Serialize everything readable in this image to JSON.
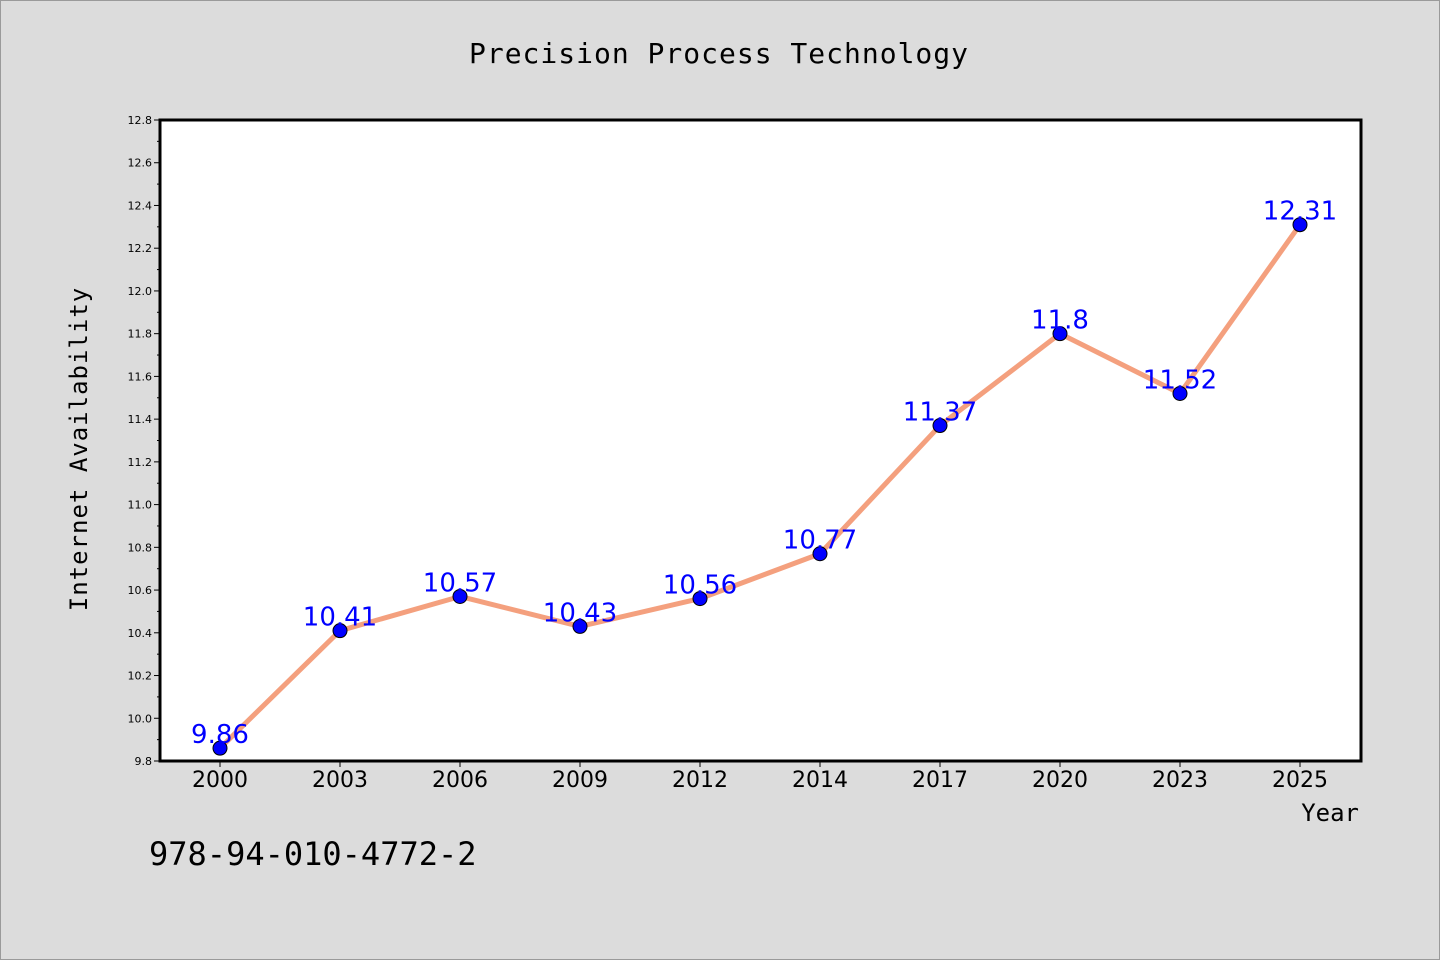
{
  "chart_data": {
    "type": "line",
    "title": "Precision Process Technology",
    "xlabel": "Year",
    "ylabel": "Internet Availability",
    "categories": [
      "2000",
      "2003",
      "2006",
      "2009",
      "2012",
      "2014",
      "2017",
      "2020",
      "2023",
      "2025"
    ],
    "series": [
      {
        "values": [
          9.86,
          10.41,
          10.57,
          10.43,
          10.56,
          10.77,
          11.37,
          11.8,
          11.52,
          12.31
        ],
        "labels": [
          "9.86",
          "10.41",
          "10.57",
          "10.43",
          "10.56",
          "10.77",
          "11.37",
          "11.8",
          "11.52",
          "12.31"
        ]
      }
    ],
    "ylim": [
      9.8,
      12.8
    ],
    "yticks": [
      "9.8",
      "10.0",
      "10.2",
      "10.4",
      "10.6",
      "10.8",
      "11.0",
      "11.2",
      "11.4",
      "11.6",
      "11.8",
      "12.0",
      "12.2",
      "12.4",
      "12.6",
      "12.8"
    ],
    "grid": false,
    "legend": "none",
    "annotation": "978-94-010-4772-2",
    "colors": {
      "background": "#dcdcdc",
      "plot_area": "#ffffff",
      "line": "#f4a07e",
      "marker": "#0000ff",
      "data_label": "#0000ff",
      "text": "#000000"
    }
  }
}
